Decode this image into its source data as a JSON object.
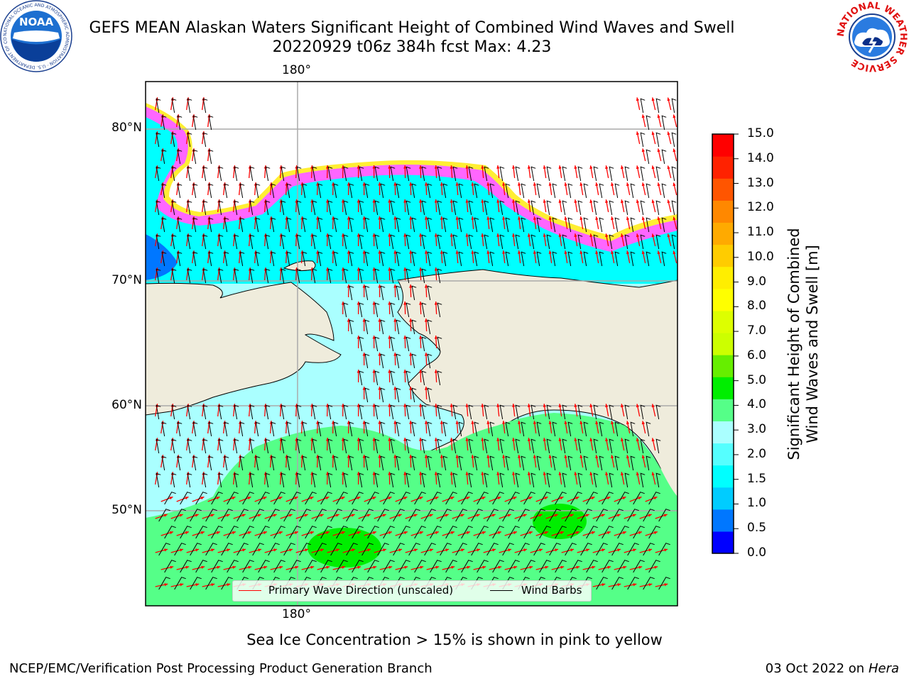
{
  "header": {
    "title_line1": "GEFS MEAN Alaskan Waters Significant Height of Combined Wind Waves and Swell",
    "title_line2": "20220929 t06z 384h fcst   Max: 4.23"
  },
  "logos": {
    "left": "NOAA",
    "left_ring_text": "NATIONAL OCEANIC AND ATMOSPHERIC ADMINISTRATION · U.S. DEPARTMENT OF COMMERCE",
    "right_ring_text": "NATIONAL WEATHER SERVICE"
  },
  "map": {
    "lat_labels": [
      "80°N",
      "70°N",
      "60°N",
      "50°N"
    ],
    "lon_top": "180°",
    "lon_bottom": "180°",
    "max_value": 4.23,
    "colors": {
      "land": "#efecdc",
      "ice_pink": "#ff66ff",
      "ice_yellow": "#ffee33",
      "wave_arrow": "#ff0000",
      "wind_barb": "#000000"
    }
  },
  "colorbar": {
    "title_line1": "Significant Height of Combined",
    "title_line2": "Wind Waves and Swell [m]",
    "ticks": [
      "15.0",
      "14.0",
      "13.0",
      "12.0",
      "11.0",
      "10.0",
      "9.0",
      "8.0",
      "7.0",
      "6.0",
      "5.0",
      "4.0",
      "3.0",
      "2.0",
      "1.5",
      "1.0",
      "0.5",
      "0.0"
    ],
    "colors_bottom_to_top": [
      "#0000ff",
      "#0077ff",
      "#00ccff",
      "#00ffff",
      "#55ffff",
      "#aaffff",
      "#55ff88",
      "#00ee00",
      "#66ee00",
      "#ccff00",
      "#ddff00",
      "#ffff00",
      "#ffee00",
      "#ffcc00",
      "#ffaa00",
      "#ff8800",
      "#ff5500",
      "#ff2200",
      "#ff0000"
    ]
  },
  "legend": {
    "wave_label": "Primary Wave Direction (unscaled)",
    "wind_label": "Wind Barbs"
  },
  "footer": {
    "note": "Sea Ice Concentration > 15% is shown in pink to yellow",
    "branch": "NCEP/EMC/Verification Post Processing Product Generation Branch",
    "date": "03 Oct 2022 on",
    "host": "Hera"
  }
}
